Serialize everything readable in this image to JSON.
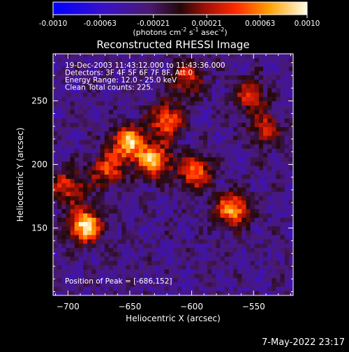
{
  "colorbar": {
    "tick_labels": [
      "-0.0010",
      "-0.00063",
      "-0.00021",
      "0.00021",
      "0.00063",
      "0.0010"
    ],
    "tick_values": [
      -0.001,
      -0.00063,
      -0.00021,
      0.00021,
      0.00063,
      0.001
    ],
    "range": [
      -0.001,
      0.001
    ],
    "units_text": "(photons cm",
    "units_exp1": "-2",
    "units_mid": " s",
    "units_exp2": "-1",
    "units_mid2": " asec",
    "units_exp3": "-2",
    "units_close": ")"
  },
  "chart_data": {
    "type": "heatmap",
    "title": "Reconstructed RHESSI Image",
    "xlabel": "Heliocentric X (arcsec)",
    "ylabel": "Heliocentric Y (arcsec)",
    "xlim": [
      -712,
      -518
    ],
    "ylim": [
      97,
      287
    ],
    "x_ticks": [
      -700,
      -650,
      -600,
      -550
    ],
    "y_ticks": [
      150,
      200,
      250
    ],
    "annotations": [
      "19-Dec-2003 11:43:12.000 to 11:43:36.000",
      "Detectors: 3F 4F 5F 6F 7F 8F, Att 0",
      "Energy Range: 12.0 - 25.0 keV",
      "Clean     Total counts: 225."
    ],
    "peak_label": "Position of Peak = [-686,152]",
    "peak": [
      -686,
      152
    ],
    "bright_sources": [
      {
        "x": -686,
        "y": 152,
        "strength": 1.0
      },
      {
        "x": -651,
        "y": 217,
        "strength": 0.9
      },
      {
        "x": -630,
        "y": 203,
        "strength": 0.85
      },
      {
        "x": -567,
        "y": 165,
        "strength": 0.85
      },
      {
        "x": -620,
        "y": 235,
        "strength": 0.7
      },
      {
        "x": -597,
        "y": 194,
        "strength": 0.7
      },
      {
        "x": -668,
        "y": 196,
        "strength": 0.6
      },
      {
        "x": -700,
        "y": 183,
        "strength": 0.55
      },
      {
        "x": -604,
        "y": 268,
        "strength": 0.55
      },
      {
        "x": -553,
        "y": 254,
        "strength": 0.5
      },
      {
        "x": -540,
        "y": 228,
        "strength": 0.5
      }
    ],
    "colormap": "blue-purple-red-orange-yellow-white",
    "grid": false
  },
  "timestamp": "7-May-2022 23:17"
}
